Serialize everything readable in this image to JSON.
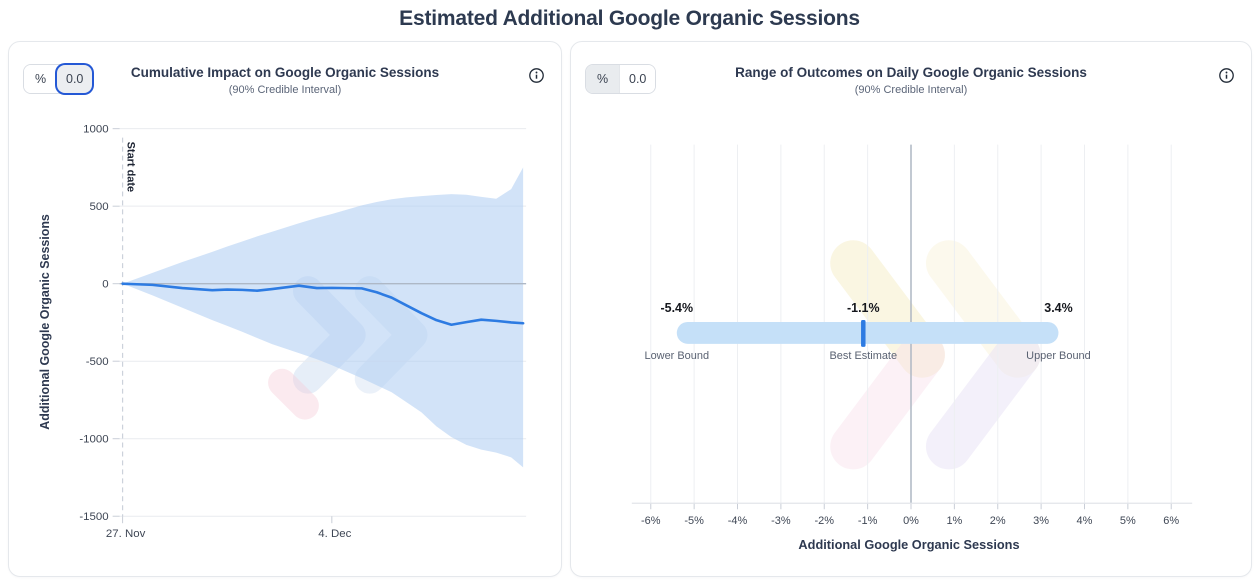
{
  "page": {
    "title": "Estimated Additional Google Organic Sessions"
  },
  "panels": {
    "cumulative": {
      "unit_toggle": {
        "percent": "%",
        "absolute": "0.0",
        "selected": "absolute"
      },
      "title": "Cumulative Impact on Google Organic Sessions",
      "subtitle": "(90% Credible Interval)"
    },
    "range": {
      "unit_toggle": {
        "percent": "%",
        "absolute": "0.0",
        "selected": "percent"
      },
      "title": "Range of Outcomes on Daily Google Organic Sessions",
      "subtitle": "(90% Credible Interval)"
    }
  },
  "chart_data": [
    {
      "type": "area",
      "title": "Cumulative Impact on Google Organic Sessions",
      "subtitle": "(90% Credible Interval)",
      "ylabel": "Additional Google Organic Sessions",
      "ylim": [
        -1500,
        1000
      ],
      "yticks": [
        1000,
        500,
        0,
        -500,
        -1000,
        -1500
      ],
      "xticks": [
        {
          "x": 0,
          "label": "27. Nov"
        },
        {
          "x": 7,
          "label": "4. Dec"
        }
      ],
      "x_range": [
        0,
        13.4
      ],
      "x_unit": "days from start date",
      "annotations": [
        {
          "x": 0,
          "label": "Start date",
          "style": "dashed-vertical-line"
        }
      ],
      "x": [
        0,
        1,
        2,
        3,
        3.5,
        4,
        4.5,
        5,
        5.9,
        6.5,
        7,
        8,
        8.5,
        9,
        9.5,
        10,
        10.5,
        11,
        11.5,
        12,
        12.5,
        13,
        13.4
      ],
      "series": [
        {
          "name": "Estimated cumulative impact",
          "values": [
            0,
            -8,
            -28,
            -42,
            -38,
            -40,
            -45,
            -35,
            -13,
            -28,
            -27,
            -30,
            -55,
            -90,
            -140,
            -190,
            -235,
            -265,
            -248,
            -232,
            -240,
            -250,
            -255
          ]
        },
        {
          "name": "Upper bound (90% CI)",
          "values": [
            0,
            70,
            140,
            205,
            240,
            272,
            305,
            335,
            390,
            425,
            450,
            505,
            527,
            545,
            557,
            565,
            572,
            578,
            574,
            560,
            548,
            610,
            750
          ]
        },
        {
          "name": "Lower bound (90% CI)",
          "values": [
            0,
            -75,
            -155,
            -235,
            -272,
            -310,
            -350,
            -390,
            -448,
            -488,
            -525,
            -610,
            -655,
            -700,
            -765,
            -830,
            -920,
            -990,
            -1040,
            -1070,
            -1090,
            -1120,
            -1185
          ]
        }
      ],
      "colors": {
        "line": "#2d7be2",
        "band": "#cfe2f8",
        "zero_line": "#aeb8c6"
      },
      "grid": true,
      "legend": false
    },
    {
      "type": "range_bar",
      "title": "Range of Outcomes on Daily Google Organic Sessions",
      "subtitle": "(90% Credible Interval)",
      "xlabel": "Additional Google Organic Sessions",
      "xlim": [
        -6.4,
        6.5
      ],
      "xtick_values": [
        -6,
        -5,
        -4,
        -3,
        -2,
        -1,
        0,
        1,
        2,
        3,
        4,
        5,
        6
      ],
      "xtick_labels": [
        "-6%",
        "-5%",
        "-4%",
        "-3%",
        "-2%",
        "-1%",
        "0%",
        "1%",
        "2%",
        "3%",
        "4%",
        "5%",
        "6%"
      ],
      "lower_bound": {
        "value": -5.4,
        "display": "-5.4%",
        "label": "Lower Bound"
      },
      "best_estimate": {
        "value": -1.1,
        "display": "-1.1%",
        "label": "Best Estimate"
      },
      "upper_bound": {
        "value": 3.4,
        "display": "3.4%",
        "label": "Upper Bound"
      },
      "colors": {
        "bar": "#c5e0f8",
        "marker": "#2d7be2",
        "zero_line": "#aeb7c3"
      },
      "grid": true,
      "legend": false
    }
  ]
}
